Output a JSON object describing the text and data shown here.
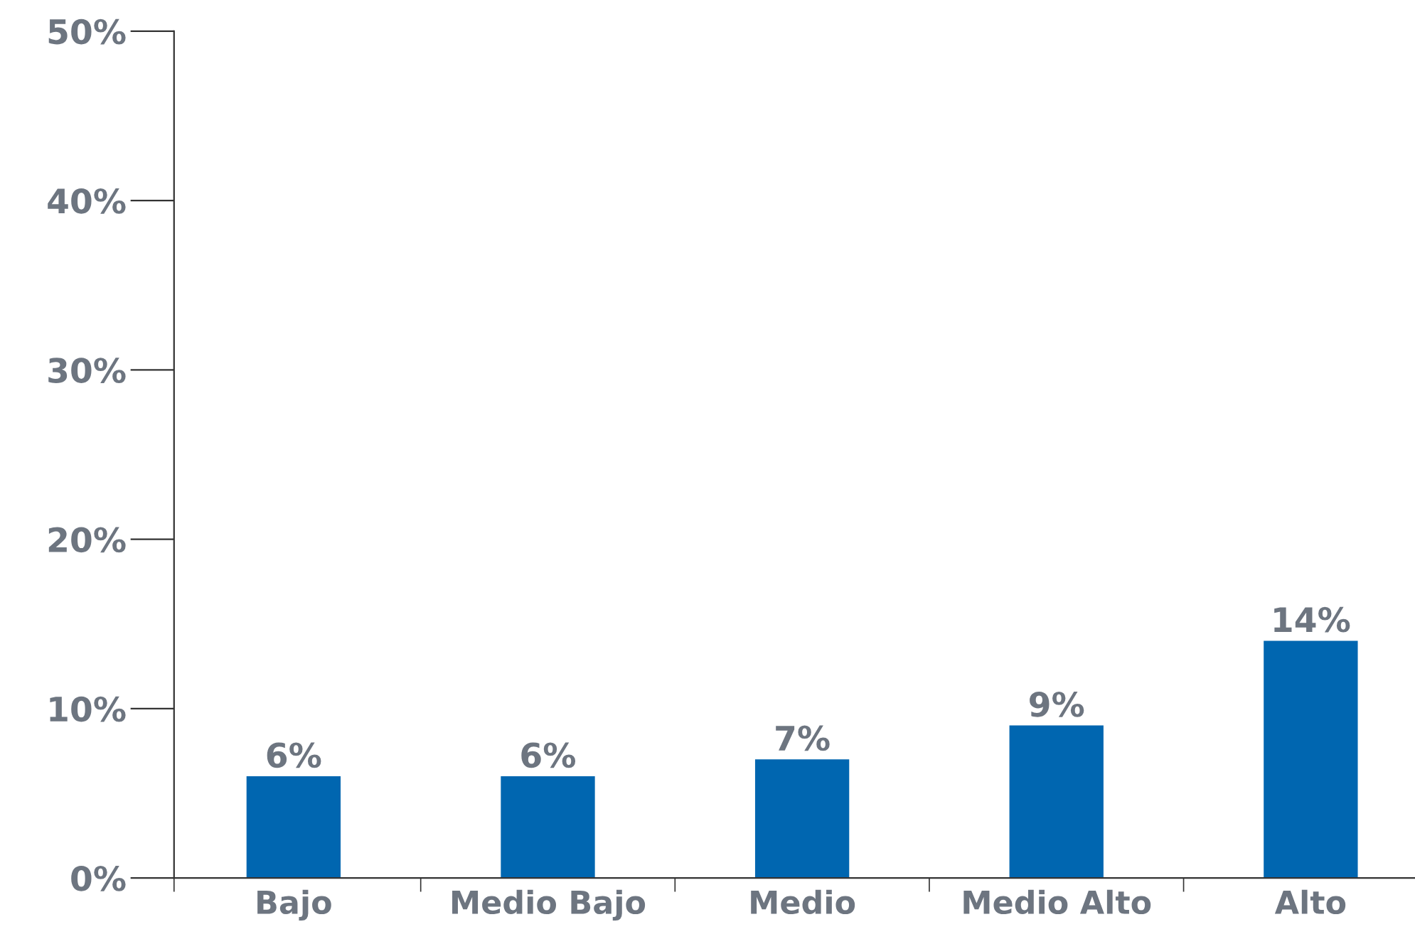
{
  "chart_data": {
    "type": "bar",
    "categories": [
      "Bajo",
      "Medio Bajo",
      "Medio",
      "Medio Alto",
      "Alto"
    ],
    "values": [
      6,
      6,
      7,
      9,
      14
    ],
    "color": "#0066b0",
    "data_labels": true,
    "value_labels": [
      "6%",
      "6%",
      "7%",
      "9%",
      "14%"
    ],
    "ylim": [
      0,
      50
    ],
    "yticks": [
      {
        "value": 0,
        "label": "0%"
      },
      {
        "value": 10,
        "label": "10%"
      },
      {
        "value": 20,
        "label": "20%"
      },
      {
        "value": 30,
        "label": "30%"
      },
      {
        "value": 40,
        "label": "40%"
      },
      {
        "value": 50,
        "label": "50%"
      }
    ],
    "grid": false,
    "legend": false
  }
}
